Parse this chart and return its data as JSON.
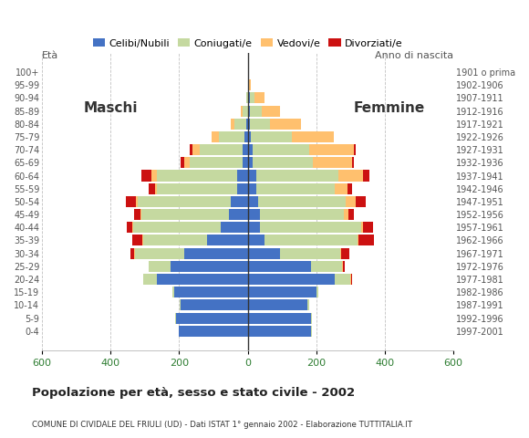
{
  "age_groups": [
    "0-4",
    "5-9",
    "10-14",
    "15-19",
    "20-24",
    "25-29",
    "30-34",
    "35-39",
    "40-44",
    "45-49",
    "50-54",
    "55-59",
    "60-64",
    "65-69",
    "70-74",
    "75-79",
    "80-84",
    "85-89",
    "90-94",
    "95-99",
    "100+"
  ],
  "birth_years": [
    "1997-2001",
    "1992-1996",
    "1987-1991",
    "1982-1986",
    "1977-1981",
    "1972-1976",
    "1967-1971",
    "1962-1966",
    "1957-1961",
    "1952-1956",
    "1947-1951",
    "1942-1946",
    "1937-1941",
    "1932-1936",
    "1927-1931",
    "1922-1926",
    "1917-1921",
    "1912-1916",
    "1907-1911",
    "1902-1906",
    "1901 o prima"
  ],
  "males": {
    "celibi": [
      200,
      210,
      195,
      215,
      265,
      225,
      185,
      120,
      80,
      55,
      50,
      30,
      30,
      15,
      15,
      10,
      5,
      0,
      0,
      0,
      0
    ],
    "coniugati": [
      2,
      2,
      3,
      5,
      40,
      65,
      145,
      185,
      255,
      255,
      270,
      235,
      235,
      155,
      125,
      75,
      35,
      15,
      5,
      0,
      0
    ],
    "vedovi": [
      0,
      0,
      0,
      0,
      0,
      0,
      2,
      2,
      2,
      3,
      5,
      5,
      15,
      15,
      20,
      20,
      10,
      5,
      0,
      0,
      0
    ],
    "divorziati": [
      0,
      0,
      0,
      0,
      0,
      0,
      10,
      30,
      15,
      18,
      30,
      18,
      30,
      12,
      8,
      0,
      0,
      0,
      0,
      0,
      0
    ]
  },
  "females": {
    "nubili": [
      185,
      185,
      175,
      200,
      255,
      185,
      95,
      50,
      35,
      35,
      30,
      25,
      25,
      15,
      15,
      10,
      5,
      5,
      5,
      0,
      0
    ],
    "coniugate": [
      2,
      2,
      3,
      5,
      45,
      90,
      175,
      270,
      295,
      245,
      255,
      230,
      240,
      175,
      165,
      120,
      60,
      35,
      15,
      3,
      0
    ],
    "vedove": [
      0,
      0,
      0,
      0,
      2,
      2,
      2,
      3,
      5,
      15,
      30,
      35,
      70,
      115,
      130,
      120,
      90,
      55,
      30,
      5,
      0
    ],
    "divorziate": [
      0,
      0,
      0,
      0,
      2,
      5,
      25,
      45,
      30,
      15,
      30,
      15,
      20,
      5,
      5,
      0,
      0,
      0,
      0,
      0,
      0
    ]
  },
  "colors": {
    "celibi": "#4472c4",
    "coniugati": "#c5d9a0",
    "vedovi": "#ffc06e",
    "divorziati": "#cc1111"
  },
  "title": "Popolazione per età, sesso e stato civile - 2002",
  "subtitle": "COMUNE DI CIVIDALE DEL FRIULI (UD) - Dati ISTAT 1° gennaio 2002 - Elaborazione TUTTITALIA.IT",
  "label_maschi": "Maschi",
  "label_femmine": "Femmine",
  "label_eta": "Età",
  "label_anno": "Anno di nascita",
  "xlim": 600,
  "bg_color": "#ffffff",
  "grid_color": "#999999",
  "bar_height": 0.85,
  "legend_labels": [
    "Celibi/Nubili",
    "Coniugati/e",
    "Vedovi/e",
    "Divorziati/e"
  ]
}
